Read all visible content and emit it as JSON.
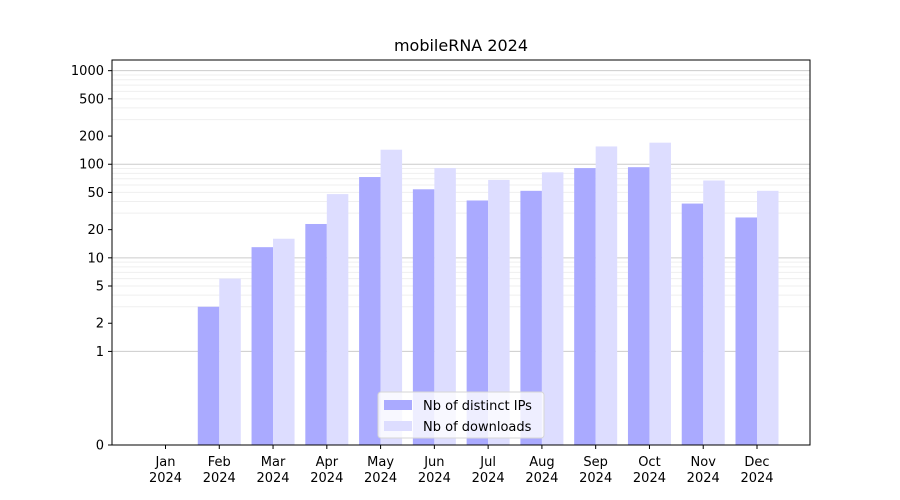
{
  "chart_data": {
    "type": "bar",
    "title": "mobileRNA 2024",
    "xlabel": "",
    "ylabel": "",
    "y_scale": "symlog",
    "ylim": [
      0,
      1300
    ],
    "y_ticks": [
      0,
      1,
      2,
      5,
      10,
      20,
      50,
      100,
      200,
      500,
      1000
    ],
    "grid": true,
    "legend_position": "bottom-center",
    "categories": [
      {
        "month": "Jan",
        "year": "2024"
      },
      {
        "month": "Feb",
        "year": "2024"
      },
      {
        "month": "Mar",
        "year": "2024"
      },
      {
        "month": "Apr",
        "year": "2024"
      },
      {
        "month": "May",
        "year": "2024"
      },
      {
        "month": "Jun",
        "year": "2024"
      },
      {
        "month": "Jul",
        "year": "2024"
      },
      {
        "month": "Aug",
        "year": "2024"
      },
      {
        "month": "Sep",
        "year": "2024"
      },
      {
        "month": "Oct",
        "year": "2024"
      },
      {
        "month": "Nov",
        "year": "2024"
      },
      {
        "month": "Dec",
        "year": "2024"
      }
    ],
    "series": [
      {
        "name": "Nb of distinct IPs",
        "color": "#aaaaff",
        "values": [
          0,
          3,
          13,
          23,
          73,
          54,
          41,
          52,
          91,
          93,
          38,
          27
        ]
      },
      {
        "name": "Nb of downloads",
        "color": "#ddddff",
        "values": [
          0,
          6,
          16,
          48,
          143,
          91,
          68,
          82,
          155,
          170,
          67,
          52
        ]
      }
    ]
  }
}
